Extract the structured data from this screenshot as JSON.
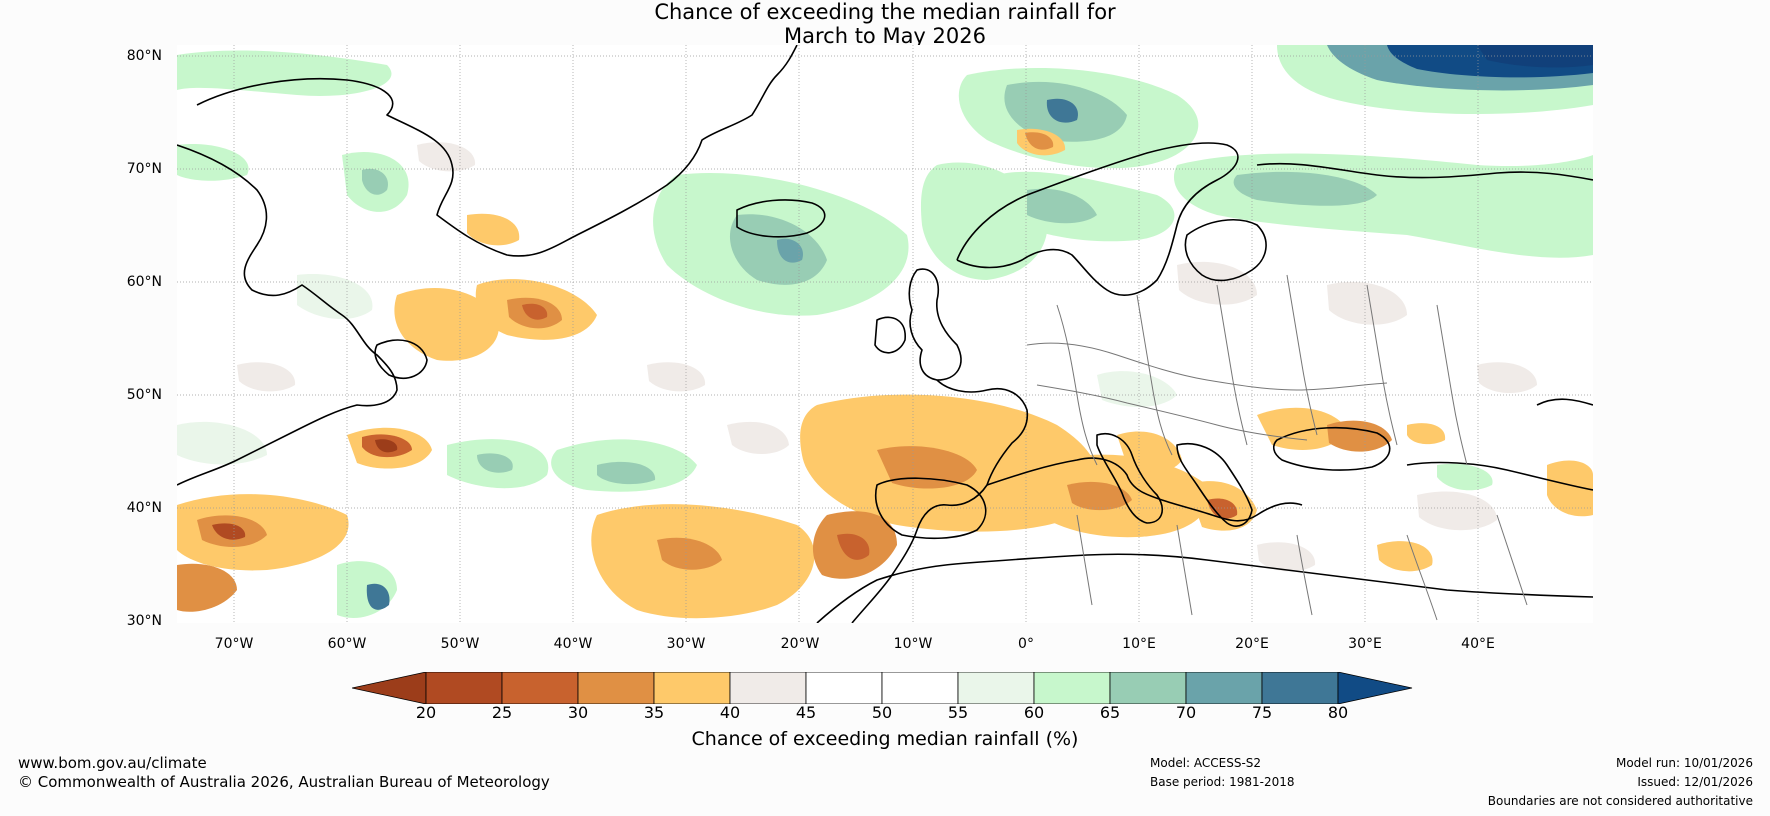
{
  "title": {
    "line1": "Chance of exceeding the median rainfall for",
    "line2": "March to May 2026"
  },
  "map": {
    "lat_labels": [
      "80°N",
      "70°N",
      "60°N",
      "50°N",
      "40°N",
      "30°N"
    ],
    "lon_labels": [
      "70°W",
      "60°W",
      "50°W",
      "40°W",
      "30°W",
      "20°W",
      "10°W",
      "0°",
      "10°E",
      "20°E",
      "30°E",
      "40°E"
    ],
    "lat_range": [
      30,
      81
    ],
    "lon_range": [
      -75,
      50
    ],
    "region": "North Atlantic and Europe"
  },
  "colorbar": {
    "title": "Chance of exceeding median rainfall (%)",
    "tick_labels": [
      "20",
      "25",
      "30",
      "35",
      "40",
      "45",
      "50",
      "55",
      "60",
      "65",
      "70",
      "75",
      "80"
    ],
    "colors": [
      "#9c3d1a",
      "#b04a22",
      "#c8622e",
      "#e09044",
      "#fec96a",
      "#f0ebe8",
      "#ffffff",
      "#ffffff",
      "#eaf6ea",
      "#c7f7cc",
      "#98cdb4",
      "#6aa3aa",
      "#3f7796",
      "#114b85"
    ]
  },
  "footer": {
    "website": "www.bom.gov.au/climate",
    "copyright": "© Commonwealth of Australia 2026, Australian Bureau of Meteorology",
    "model": "Model: ACCESS-S2",
    "base_period": "Base period: 1981-2018",
    "model_run": "Model run: 10/01/2026",
    "issued": "Issued: 12/01/2026",
    "disclaimer": "Boundaries are not considered authoritative"
  }
}
